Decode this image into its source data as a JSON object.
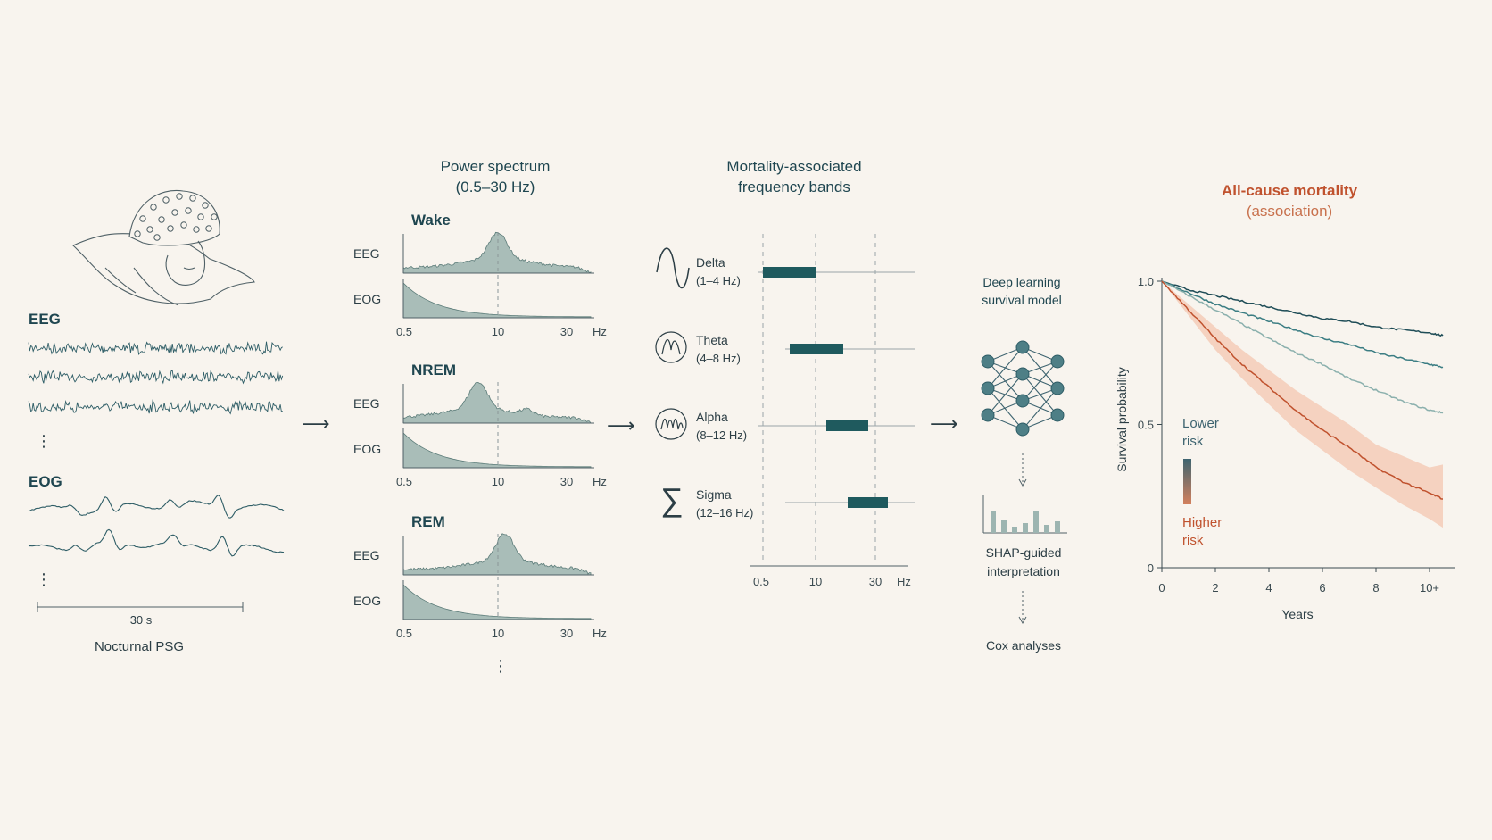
{
  "colors": {
    "background": "#f8f4ee",
    "teal_dark": "#1f5a5e",
    "teal_fill": "#a9bdb8",
    "signal": "#2e5d66",
    "mortality_red": "#c0522e",
    "ci_band": "#f4c9b4"
  },
  "psg": {
    "eeg_label": "EEG",
    "eog_label": "EOG",
    "more_dots": "⋮",
    "scale_label": "30 s",
    "caption": "Nocturnal PSG",
    "illustration_icon": "sleeping-person-with-eeg-cap-icon"
  },
  "arrow": "⟶",
  "spectrum": {
    "title_line1": "Power spectrum",
    "title_line2": "(0.5–30 Hz)",
    "eeg_label": "EEG",
    "eog_label": "EOG",
    "ticks": [
      "0.5",
      "10",
      "30"
    ],
    "unit": "Hz",
    "more_dots": "⋮",
    "stages": [
      {
        "name": "Wake",
        "eeg_peak_hz": 10
      },
      {
        "name": "NREM",
        "eeg_peak_hz": 8
      },
      {
        "name": "REM",
        "eeg_peak_hz": 12
      }
    ]
  },
  "bands": {
    "title_line1": "Mortality-associated",
    "title_line2": "frequency bands",
    "ticks": [
      "0.5",
      "10",
      "30"
    ],
    "unit": "Hz",
    "items": [
      {
        "name": "Delta",
        "range": "(1–4 Hz)",
        "icon": "sine-wave-icon",
        "lo": 1,
        "hi": 4
      },
      {
        "name": "Theta",
        "range": "(4–8 Hz)",
        "icon": "theta-wave-circle-icon",
        "lo": 4,
        "hi": 8
      },
      {
        "name": "Alpha",
        "range": "(8–12 Hz)",
        "icon": "alpha-wave-circle-icon",
        "lo": 8,
        "hi": 12
      },
      {
        "name": "Sigma",
        "range": "(12–16 Hz)",
        "icon": "sigma-icon",
        "lo": 12,
        "hi": 16
      }
    ]
  },
  "model": {
    "title_line1": "Deep learning",
    "title_line2": "survival model",
    "network_icon": "neural-network-icon",
    "shap_icon": "bar-chart-icon",
    "shap_line1": "SHAP-guided",
    "shap_line2": "interpretation",
    "cox_label": "Cox analyses"
  },
  "mortality": {
    "title_line1": "All-cause mortality",
    "title_line2": "(association)",
    "legend_top_line1": "Lower",
    "legend_top_line2": "risk",
    "legend_bottom_line1": "Higher",
    "legend_bottom_line2": "risk"
  },
  "chart_data": {
    "type": "line",
    "title": "",
    "xlabel": "Years",
    "ylabel": "Survival probability",
    "x_ticks": [
      "0",
      "2",
      "4",
      "6",
      "8",
      "10+"
    ],
    "y_ticks": [
      "0",
      "0.5",
      "1.0"
    ],
    "xlim": [
      0,
      10.5
    ],
    "ylim": [
      0,
      1.0
    ],
    "x": [
      0,
      1,
      2,
      3,
      4,
      5,
      6,
      7,
      8,
      9,
      10,
      10.5
    ],
    "series": [
      {
        "color": "#1f4d57",
        "values": [
          1.0,
          0.97,
          0.95,
          0.93,
          0.91,
          0.89,
          0.87,
          0.86,
          0.84,
          0.83,
          0.82,
          0.81
        ]
      },
      {
        "color": "#3b7d83",
        "values": [
          1.0,
          0.96,
          0.92,
          0.89,
          0.86,
          0.83,
          0.8,
          0.78,
          0.75,
          0.73,
          0.71,
          0.7
        ]
      },
      {
        "color": "#8bb0ad",
        "values": [
          1.0,
          0.95,
          0.9,
          0.85,
          0.8,
          0.75,
          0.71,
          0.66,
          0.62,
          0.58,
          0.55,
          0.54
        ]
      },
      {
        "color": "#c0522e",
        "values": [
          1.0,
          0.9,
          0.8,
          0.71,
          0.63,
          0.55,
          0.48,
          0.42,
          0.35,
          0.3,
          0.26,
          0.24
        ],
        "ci_low": [
          1.0,
          0.88,
          0.76,
          0.66,
          0.57,
          0.48,
          0.41,
          0.34,
          0.28,
          0.22,
          0.17,
          0.14
        ],
        "ci_high": [
          1.0,
          0.92,
          0.84,
          0.76,
          0.69,
          0.62,
          0.56,
          0.5,
          0.43,
          0.39,
          0.35,
          0.36
        ]
      }
    ]
  }
}
